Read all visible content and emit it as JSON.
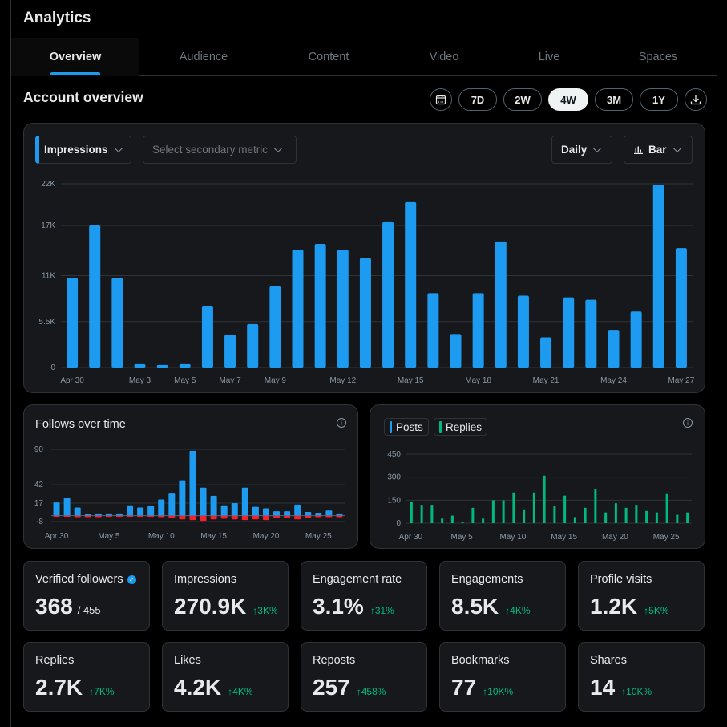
{
  "app": {
    "title": "Analytics"
  },
  "tabs": [
    {
      "label": "Overview",
      "active": true
    },
    {
      "label": "Audience",
      "active": false
    },
    {
      "label": "Content",
      "active": false
    },
    {
      "label": "Video",
      "active": false
    },
    {
      "label": "Live",
      "active": false
    },
    {
      "label": "Spaces",
      "active": false
    }
  ],
  "account": {
    "title": "Account overview",
    "ranges": [
      "7D",
      "2W",
      "4W",
      "3M",
      "1Y"
    ],
    "active_range": "4W",
    "calendar_icon": "calendar-icon",
    "download_icon": "download-icon"
  },
  "main_chart": {
    "primary_metric": "Impressions",
    "secondary_placeholder": "Select secondary metric",
    "granularity": "Daily",
    "chart_type": "Bar"
  },
  "follows": {
    "title": "Follows over time",
    "info_icon": "info-icon"
  },
  "posts_panel": {
    "legend_posts": "Posts",
    "legend_replies": "Replies",
    "info_icon": "info-icon"
  },
  "colors": {
    "accent": "#1d9bf0",
    "green": "#00ba7c",
    "red": "#f4212e"
  },
  "chart_data": [
    {
      "type": "bar",
      "ylim": [
        0,
        22000
      ],
      "yticks": [
        "22K",
        "17K",
        "11K",
        "5.5K",
        "0"
      ],
      "ytick_values": [
        22000,
        17000,
        11000,
        5500,
        0
      ],
      "xticks": [
        {
          "label": "Apr 30",
          "index": 0
        },
        {
          "label": "May 3",
          "index": 3
        },
        {
          "label": "May 5",
          "index": 5
        },
        {
          "label": "May 7",
          "index": 7
        },
        {
          "label": "May 9",
          "index": 9
        },
        {
          "label": "May 12",
          "index": 12
        },
        {
          "label": "May 15",
          "index": 15
        },
        {
          "label": "May 18",
          "index": 18
        },
        {
          "label": "May 21",
          "index": 21
        },
        {
          "label": "May 24",
          "index": 24
        },
        {
          "label": "May 27",
          "index": 27
        }
      ],
      "series": [
        {
          "values": [
            10700,
            17000,
            10700,
            400,
            300,
            400,
            7400,
            3900,
            5200,
            9700,
            14100,
            14800,
            14100,
            13100,
            17400,
            19800,
            8900,
            4000,
            8900,
            15100,
            8600,
            3600,
            8400,
            8100,
            4500,
            6700,
            21900,
            14300
          ]
        }
      ]
    },
    {
      "type": "bar",
      "ylim": [
        -8,
        90
      ],
      "yticks": [
        "90",
        "42",
        "17",
        "-8"
      ],
      "ytick_values": [
        90,
        42,
        17,
        -8
      ],
      "xticks": [
        {
          "label": "Apr 30",
          "index": 0
        },
        {
          "label": "May 5",
          "index": 5
        },
        {
          "label": "May 10",
          "index": 10
        },
        {
          "label": "May 15",
          "index": 15
        },
        {
          "label": "May 20",
          "index": 20
        },
        {
          "label": "May 25",
          "index": 25
        }
      ],
      "series": [
        {
          "values": [
            18,
            24,
            11,
            2,
            3,
            3,
            3,
            14,
            11,
            13,
            22,
            30,
            48,
            88,
            38,
            27,
            14,
            17,
            38,
            12,
            10,
            6,
            6,
            15,
            5,
            4,
            7,
            3
          ]
        },
        {
          "values": [
            -1,
            -1,
            -2,
            -2,
            -2,
            -1,
            -1,
            -1,
            -1,
            -1,
            -2,
            -3,
            -5,
            -6,
            -7,
            -5,
            -4,
            -5,
            -6,
            -5,
            -6,
            -3,
            -3,
            -5,
            -3,
            -2,
            -2,
            -2
          ]
        }
      ]
    },
    {
      "type": "bar",
      "ylim": [
        0,
        450
      ],
      "yticks": [
        "450",
        "300",
        "150",
        "0"
      ],
      "ytick_values": [
        450,
        300,
        150,
        0
      ],
      "xticks": [
        {
          "label": "Apr 30",
          "index": 0
        },
        {
          "label": "May 5",
          "index": 5
        },
        {
          "label": "May 10",
          "index": 10
        },
        {
          "label": "May 15",
          "index": 15
        },
        {
          "label": "May 20",
          "index": 20
        },
        {
          "label": "May 25",
          "index": 25
        }
      ],
      "series": [
        {
          "name": "Posts",
          "values": [
            0,
            0,
            0,
            0,
            0,
            0,
            0,
            0,
            0,
            0,
            0,
            0,
            0,
            0,
            0,
            0,
            0,
            0,
            0,
            0,
            0,
            0,
            0,
            0,
            0,
            0,
            0,
            0
          ]
        },
        {
          "name": "Replies",
          "values": [
            140,
            120,
            120,
            30,
            50,
            10,
            100,
            30,
            150,
            150,
            200,
            90,
            200,
            310,
            110,
            180,
            40,
            100,
            220,
            70,
            130,
            100,
            120,
            80,
            70,
            190,
            55,
            70
          ]
        }
      ]
    }
  ],
  "stats": [
    {
      "label": "Verified followers",
      "value": "368",
      "sub": "/ 455",
      "delta": "",
      "verified": true
    },
    {
      "label": "Impressions",
      "value": "270.9K",
      "sub": "",
      "delta": "↑3K%"
    },
    {
      "label": "Engagement rate",
      "value": "3.1%",
      "sub": "",
      "delta": "↑31%"
    },
    {
      "label": "Engagements",
      "value": "8.5K",
      "sub": "",
      "delta": "↑4K%"
    },
    {
      "label": "Profile visits",
      "value": "1.2K",
      "sub": "",
      "delta": "↑5K%"
    },
    {
      "label": "Replies",
      "value": "2.7K",
      "sub": "",
      "delta": "↑7K%"
    },
    {
      "label": "Likes",
      "value": "4.2K",
      "sub": "",
      "delta": "↑4K%"
    },
    {
      "label": "Reposts",
      "value": "257",
      "sub": "",
      "delta": "↑458%"
    },
    {
      "label": "Bookmarks",
      "value": "77",
      "sub": "",
      "delta": "↑10K%"
    },
    {
      "label": "Shares",
      "value": "14",
      "sub": "",
      "delta": "↑10K%"
    }
  ]
}
